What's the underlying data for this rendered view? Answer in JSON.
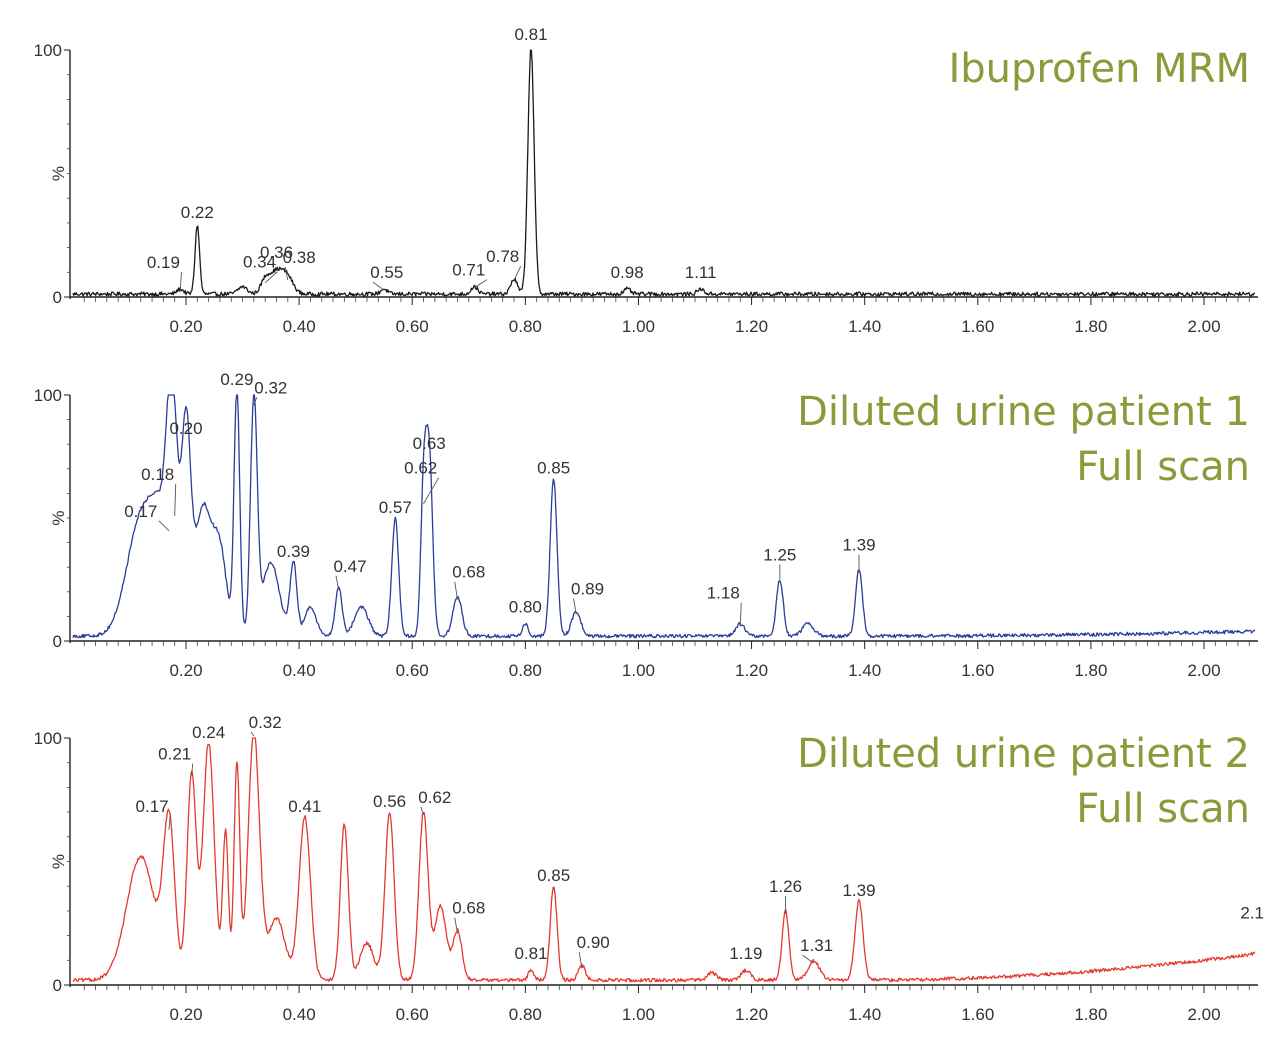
{
  "title_color": "#8C9A3A",
  "chart_data": [
    {
      "type": "line",
      "title_lines": [
        "Ibuprofen MRM"
      ],
      "color": "#1a1a1a",
      "xlim": [
        0.0,
        2.09
      ],
      "ylim": [
        0,
        100
      ],
      "x_ticks": [
        "0.20",
        "0.40",
        "0.60",
        "0.80",
        "1.00",
        "1.20",
        "1.40",
        "1.60",
        "1.80",
        "2.00"
      ],
      "y_ticks": [
        "100",
        "0"
      ],
      "ylabel": "%",
      "baseline": 1.2,
      "noise": 0.8,
      "drift": 0,
      "peaks": [
        {
          "x": 0.19,
          "y": 2.0,
          "w": 0.006
        },
        {
          "x": 0.22,
          "y": 28.0,
          "w": 0.004
        },
        {
          "x": 0.3,
          "y": 3.0,
          "w": 0.008
        },
        {
          "x": 0.34,
          "y": 5.0,
          "w": 0.008
        },
        {
          "x": 0.36,
          "y": 9.0,
          "w": 0.012
        },
        {
          "x": 0.38,
          "y": 6.0,
          "w": 0.01
        },
        {
          "x": 0.55,
          "y": 2.0,
          "w": 0.006
        },
        {
          "x": 0.71,
          "y": 3.0,
          "w": 0.006
        },
        {
          "x": 0.78,
          "y": 6.0,
          "w": 0.006
        },
        {
          "x": 0.81,
          "y": 100.0,
          "w": 0.0055
        },
        {
          "x": 0.98,
          "y": 2.0,
          "w": 0.006
        },
        {
          "x": 1.11,
          "y": 2.0,
          "w": 0.006
        }
      ],
      "labels": [
        {
          "x": 0.19,
          "y": 2.0,
          "text": "0.19",
          "dx": -0.03,
          "dy": 14
        },
        {
          "x": 0.22,
          "y": 28.0,
          "text": "0.22",
          "dx": 0,
          "dy": 0
        },
        {
          "x": 0.34,
          "y": 5.0,
          "text": "0.34",
          "dx": -0.01,
          "dy": 7
        },
        {
          "x": 0.36,
          "y": 9.0,
          "text": "0.36",
          "dx": 0,
          "dy": 7
        },
        {
          "x": 0.38,
          "y": 6.0,
          "text": "0.38",
          "dx": 0.02,
          "dy": 9
        },
        {
          "x": 0.55,
          "y": 2.0,
          "text": "0.55",
          "dx": 0.005,
          "dy": 4
        },
        {
          "x": 0.71,
          "y": 3.0,
          "text": "0.71",
          "dx": -0.01,
          "dy": 4
        },
        {
          "x": 0.78,
          "y": 6.0,
          "text": "0.78",
          "dx": -0.02,
          "dy": 10
        },
        {
          "x": 0.81,
          "y": 100.0,
          "text": "0.81",
          "dx": 0,
          "dy": 0
        },
        {
          "x": 0.98,
          "y": 2.0,
          "text": "0.98",
          "dx": 0,
          "dy": 4
        },
        {
          "x": 1.11,
          "y": 2.0,
          "text": "1.11",
          "dx": 0,
          "dy": 4
        }
      ]
    },
    {
      "type": "line",
      "title_lines": [
        "Diluted urine patient 1",
        "Full scan"
      ],
      "color": "#2a3d9a",
      "xlim": [
        0.0,
        2.09
      ],
      "ylim": [
        0,
        100
      ],
      "x_ticks": [
        "0.20",
        "0.40",
        "0.60",
        "0.80",
        "1.00",
        "1.20",
        "1.40",
        "1.60",
        "1.80",
        "2.00"
      ],
      "y_ticks": [
        "100",
        "0"
      ],
      "ylabel": "%",
      "baseline": 2.0,
      "noise": 0.7,
      "drift": 2.0,
      "peaks": [
        {
          "x": 0.12,
          "y": 46.0,
          "w": 0.025
        },
        {
          "x": 0.16,
          "y": 40.0,
          "w": 0.02
        },
        {
          "x": 0.17,
          "y": 44.0,
          "w": 0.007
        },
        {
          "x": 0.18,
          "y": 50.0,
          "w": 0.007
        },
        {
          "x": 0.2,
          "y": 80.0,
          "w": 0.008
        },
        {
          "x": 0.23,
          "y": 52.0,
          "w": 0.015
        },
        {
          "x": 0.26,
          "y": 33.0,
          "w": 0.012
        },
        {
          "x": 0.29,
          "y": 100.0,
          "w": 0.005
        },
        {
          "x": 0.32,
          "y": 95.0,
          "w": 0.006
        },
        {
          "x": 0.35,
          "y": 30.0,
          "w": 0.015
        },
        {
          "x": 0.39,
          "y": 30.0,
          "w": 0.006
        },
        {
          "x": 0.42,
          "y": 12.0,
          "w": 0.01
        },
        {
          "x": 0.47,
          "y": 20.0,
          "w": 0.006
        },
        {
          "x": 0.51,
          "y": 12.0,
          "w": 0.012
        },
        {
          "x": 0.57,
          "y": 48.0,
          "w": 0.006
        },
        {
          "x": 0.62,
          "y": 55.0,
          "w": 0.005
        },
        {
          "x": 0.63,
          "y": 74.0,
          "w": 0.006
        },
        {
          "x": 0.68,
          "y": 16.0,
          "w": 0.008
        },
        {
          "x": 0.8,
          "y": 5.0,
          "w": 0.005
        },
        {
          "x": 0.85,
          "y": 64.0,
          "w": 0.006
        },
        {
          "x": 0.89,
          "y": 10.0,
          "w": 0.008
        },
        {
          "x": 1.18,
          "y": 5.0,
          "w": 0.008
        },
        {
          "x": 1.25,
          "y": 23.0,
          "w": 0.006
        },
        {
          "x": 1.3,
          "y": 5.0,
          "w": 0.01
        },
        {
          "x": 1.39,
          "y": 27.0,
          "w": 0.006
        }
      ],
      "labels": [
        {
          "x": 0.17,
          "y": 44.0,
          "text": "0.17",
          "dx": -0.05,
          "dy": 6
        },
        {
          "x": 0.18,
          "y": 50.0,
          "text": "0.18",
          "dx": -0.03,
          "dy": 28
        },
        {
          "x": 0.2,
          "y": 80.0,
          "text": "0.20",
          "dx": 0,
          "dy": 0
        },
        {
          "x": 0.29,
          "y": 100.0,
          "text": "0.29",
          "dx": 0,
          "dy": 0
        },
        {
          "x": 0.32,
          "y": 95.0,
          "text": "0.32",
          "dx": 0.03,
          "dy": 4
        },
        {
          "x": 0.39,
          "y": 30.0,
          "text": "0.39",
          "dx": 0,
          "dy": 0
        },
        {
          "x": 0.47,
          "y": 20.0,
          "text": "0.47",
          "dx": 0.02,
          "dy": 10
        },
        {
          "x": 0.57,
          "y": 48.0,
          "text": "0.57",
          "dx": 0,
          "dy": 0
        },
        {
          "x": 0.62,
          "y": 55.0,
          "text": "0.62",
          "dx": -0.005,
          "dy": 22
        },
        {
          "x": 0.63,
          "y": 74.0,
          "text": "0.63",
          "dx": 0,
          "dy": 0
        },
        {
          "x": 0.68,
          "y": 16.0,
          "text": "0.68",
          "dx": 0.02,
          "dy": 14
        },
        {
          "x": 0.8,
          "y": 5.0,
          "text": "0.80",
          "dx": 0,
          "dy": 6
        },
        {
          "x": 0.85,
          "y": 64.0,
          "text": "0.85",
          "dx": 0,
          "dy": 0
        },
        {
          "x": 0.89,
          "y": 10.0,
          "text": "0.89",
          "dx": 0.02,
          "dy": 12
        },
        {
          "x": 1.18,
          "y": 5.0,
          "text": "1.18",
          "dx": -0.03,
          "dy": 20
        },
        {
          "x": 1.25,
          "y": 23.0,
          "text": "1.25",
          "dx": 0,
          "dy": 14
        },
        {
          "x": 1.39,
          "y": 27.0,
          "text": "1.39",
          "dx": 0,
          "dy": 14
        }
      ]
    },
    {
      "type": "line",
      "title_lines": [
        "Diluted urine patient 2",
        "Full scan"
      ],
      "color": "#e5392f",
      "xlim": [
        0.0,
        2.09
      ],
      "ylim": [
        0,
        100
      ],
      "x_ticks": [
        "0.20",
        "0.40",
        "0.60",
        "0.80",
        "1.00",
        "1.20",
        "1.40",
        "1.60",
        "1.80",
        "2.00"
      ],
      "y_ticks": [
        "100",
        "0"
      ],
      "ylabel": "%",
      "baseline": 2.0,
      "noise": 0.7,
      "drift": 11.0,
      "end_label": "2.1",
      "peaks": [
        {
          "x": 0.12,
          "y": 50.0,
          "w": 0.025
        },
        {
          "x": 0.17,
          "y": 62.0,
          "w": 0.01
        },
        {
          "x": 0.21,
          "y": 84.0,
          "w": 0.008
        },
        {
          "x": 0.24,
          "y": 96.0,
          "w": 0.01
        },
        {
          "x": 0.27,
          "y": 60.0,
          "w": 0.005
        },
        {
          "x": 0.29,
          "y": 88.0,
          "w": 0.005
        },
        {
          "x": 0.32,
          "y": 100.0,
          "w": 0.01
        },
        {
          "x": 0.36,
          "y": 25.0,
          "w": 0.015
        },
        {
          "x": 0.41,
          "y": 66.0,
          "w": 0.01
        },
        {
          "x": 0.48,
          "y": 63.0,
          "w": 0.007
        },
        {
          "x": 0.52,
          "y": 15.0,
          "w": 0.012
        },
        {
          "x": 0.56,
          "y": 68.0,
          "w": 0.008
        },
        {
          "x": 0.62,
          "y": 68.0,
          "w": 0.008
        },
        {
          "x": 0.65,
          "y": 30.0,
          "w": 0.01
        },
        {
          "x": 0.68,
          "y": 20.0,
          "w": 0.008
        },
        {
          "x": 0.81,
          "y": 4.0,
          "w": 0.005
        },
        {
          "x": 0.85,
          "y": 38.0,
          "w": 0.006
        },
        {
          "x": 0.9,
          "y": 6.0,
          "w": 0.006
        },
        {
          "x": 1.13,
          "y": 3.0,
          "w": 0.008
        },
        {
          "x": 1.19,
          "y": 4.0,
          "w": 0.008
        },
        {
          "x": 1.26,
          "y": 28.0,
          "w": 0.006
        },
        {
          "x": 1.31,
          "y": 8.0,
          "w": 0.01
        },
        {
          "x": 1.39,
          "y": 32.0,
          "w": 0.007
        }
      ],
      "labels": [
        {
          "x": 0.17,
          "y": 62.0,
          "text": "0.17",
          "dx": -0.03,
          "dy": 10
        },
        {
          "x": 0.21,
          "y": 84.0,
          "text": "0.21",
          "dx": -0.03,
          "dy": 8
        },
        {
          "x": 0.24,
          "y": 96.0,
          "text": "0.24",
          "dx": 0,
          "dy": 0
        },
        {
          "x": 0.32,
          "y": 100.0,
          "text": "0.32",
          "dx": 0.02,
          "dy": 0
        },
        {
          "x": 0.41,
          "y": 66.0,
          "text": "0.41",
          "dx": 0,
          "dy": 0
        },
        {
          "x": 0.56,
          "y": 68.0,
          "text": "0.56",
          "dx": 0,
          "dy": 0
        },
        {
          "x": 0.62,
          "y": 68.0,
          "text": "0.62",
          "dx": 0.02,
          "dy": 4
        },
        {
          "x": 0.68,
          "y": 20.0,
          "text": "0.68",
          "dx": 0.02,
          "dy": 12
        },
        {
          "x": 0.81,
          "y": 4.0,
          "text": "0.81",
          "dx": 0,
          "dy": 6
        },
        {
          "x": 0.85,
          "y": 38.0,
          "text": "0.85",
          "dx": 0,
          "dy": 0
        },
        {
          "x": 0.9,
          "y": 6.0,
          "text": "0.90",
          "dx": 0.02,
          "dy": 12
        },
        {
          "x": 1.19,
          "y": 4.0,
          "text": "1.19",
          "dx": 0,
          "dy": 6
        },
        {
          "x": 1.26,
          "y": 28.0,
          "text": "1.26",
          "dx": 0,
          "dy": 14
        },
        {
          "x": 1.31,
          "y": 8.0,
          "text": "1.31",
          "dx": 0.005,
          "dy": 4
        },
        {
          "x": 1.39,
          "y": 32.0,
          "text": "1.39",
          "dx": 0,
          "dy": 0
        }
      ]
    }
  ]
}
